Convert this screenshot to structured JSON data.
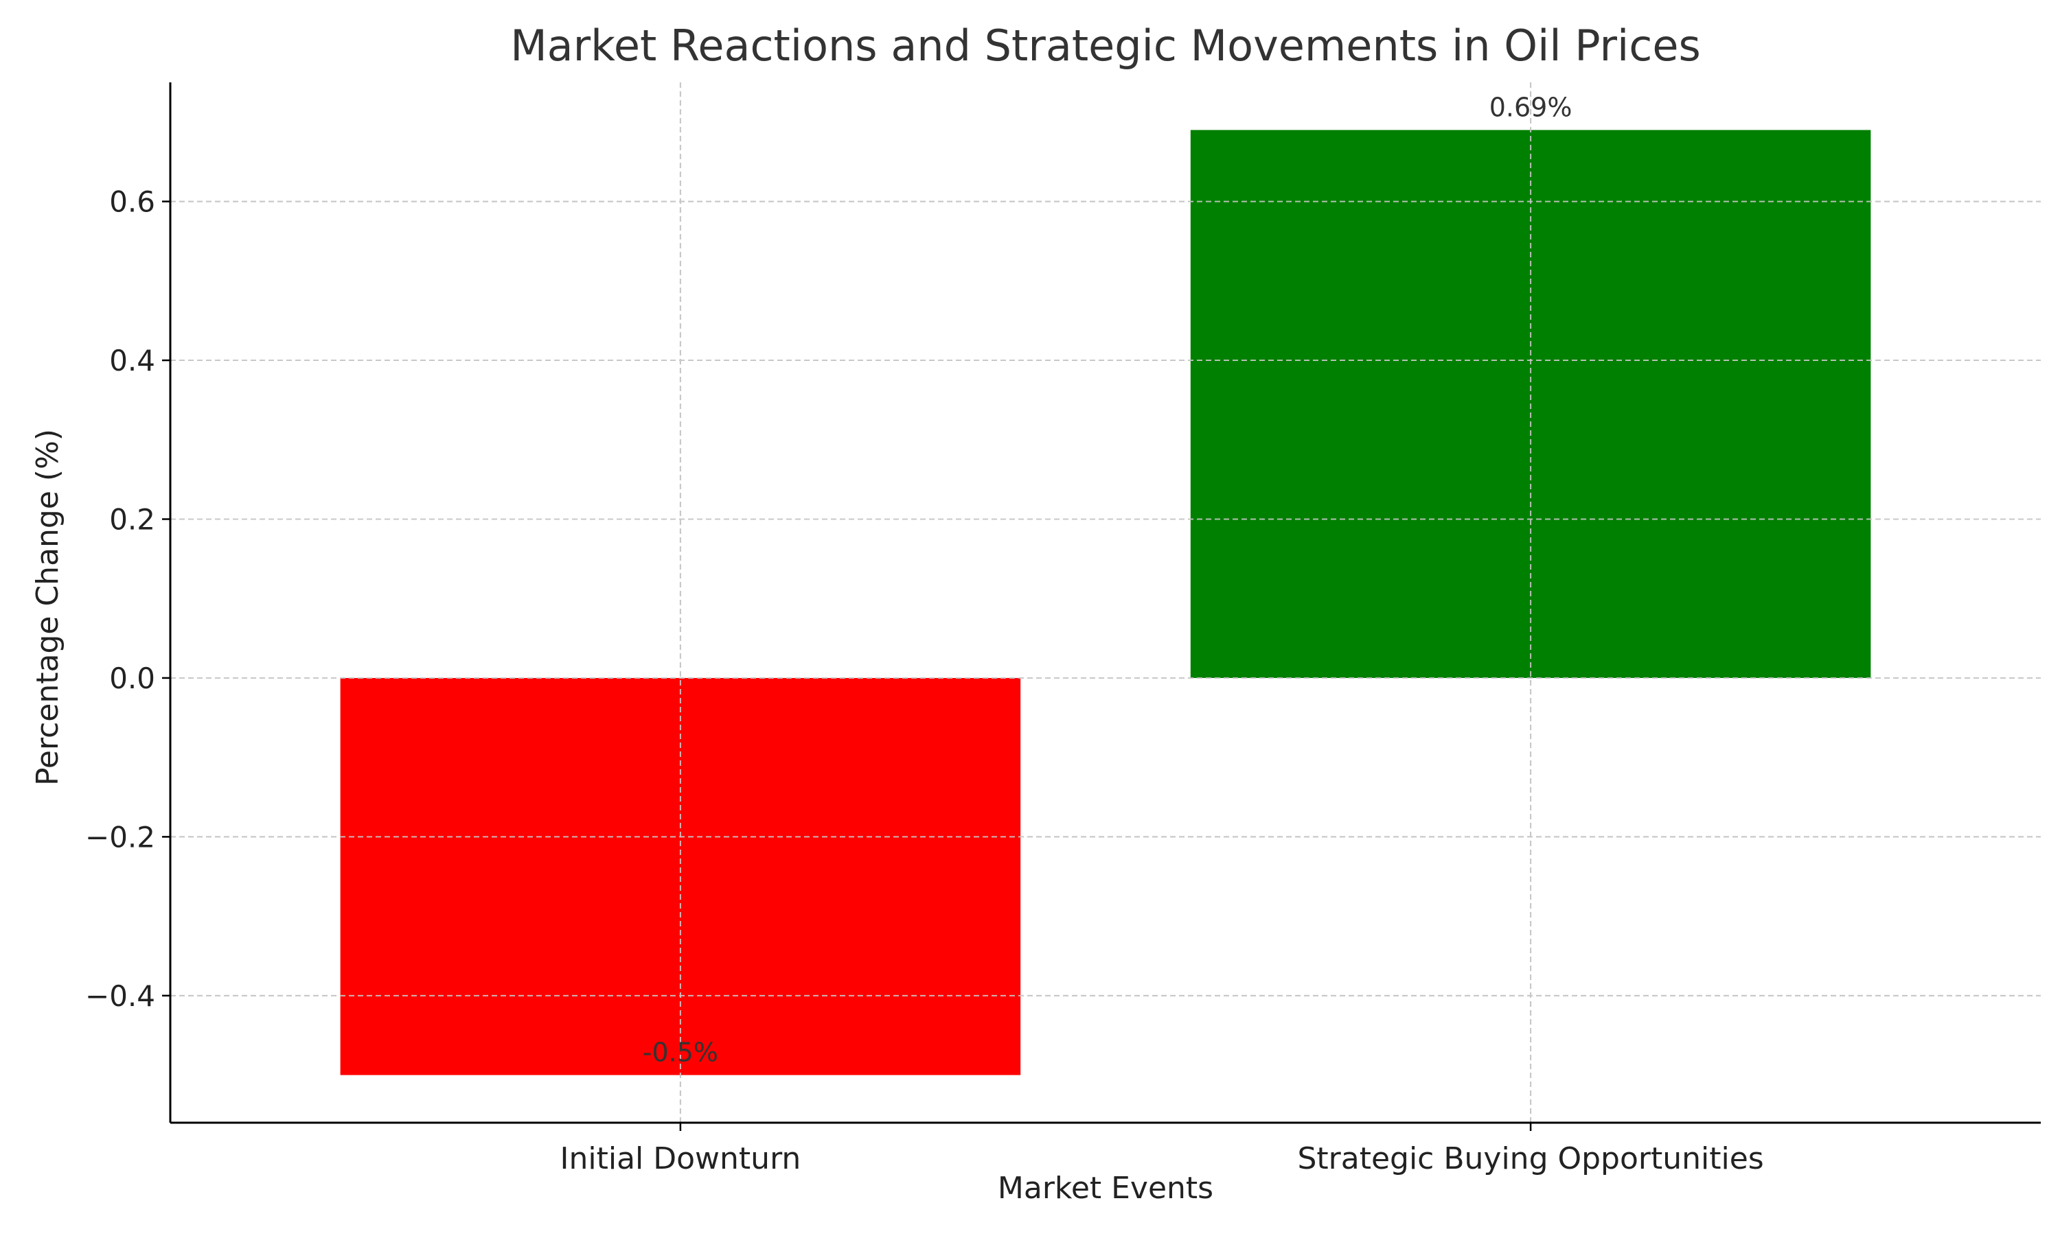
{
  "chart_data": {
    "type": "bar",
    "title": "Market Reactions and Strategic Movements in Oil Prices",
    "xlabel": "Market Events",
    "ylabel": "Percentage Change (%)",
    "categories": [
      "Initial Downturn",
      "Strategic Buying Opportunities"
    ],
    "values": [
      -0.5,
      0.69
    ],
    "value_labels": [
      "-0.5%",
      "0.69%"
    ],
    "colors": [
      "#ff0000",
      "#008000"
    ],
    "ylim": [
      -0.56,
      0.75
    ],
    "yticks": [
      -0.4,
      -0.2,
      0.0,
      0.2,
      0.4,
      0.6
    ],
    "ytick_labels": [
      "−0.4",
      "−0.2",
      "0.0",
      "0.2",
      "0.4",
      "0.6"
    ],
    "grid": true,
    "legend": "none"
  }
}
